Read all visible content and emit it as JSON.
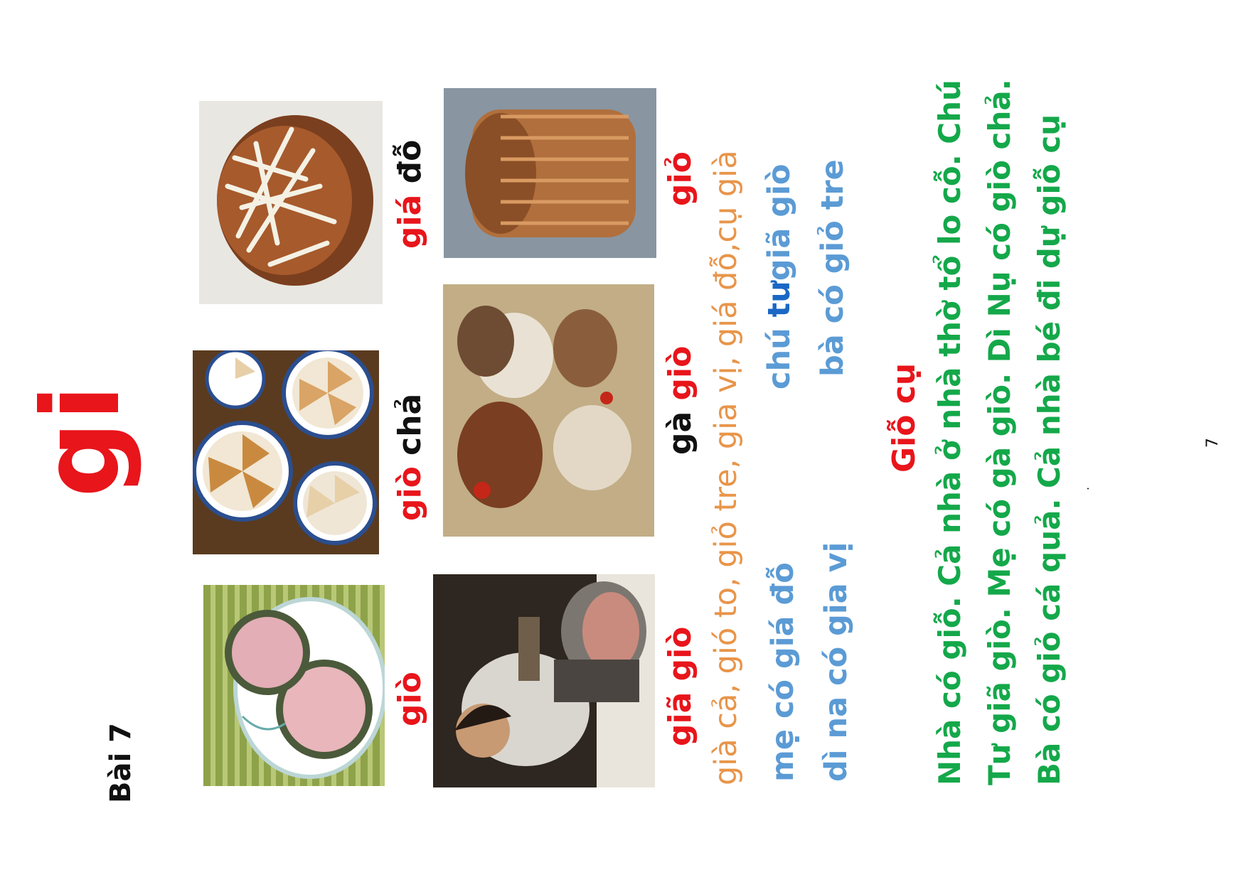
{
  "page": {
    "lesson": "Bài 7",
    "letter": "gi",
    "page_number": "7",
    "stray_dot": "."
  },
  "words": [
    {
      "parts": [
        "giò"
      ],
      "colors": [
        "red"
      ]
    },
    {
      "parts": [
        "giò",
        " chả"
      ],
      "colors": [
        "red",
        "black"
      ]
    },
    {
      "parts": [
        "giá",
        " đỗ"
      ],
      "colors": [
        "red",
        "black"
      ]
    },
    {
      "parts": [
        "giã",
        " giò"
      ],
      "colors": [
        "red",
        "red"
      ]
    },
    {
      "parts": [
        "gà ",
        "giò"
      ],
      "colors": [
        "black",
        "red"
      ]
    },
    {
      "parts": [
        "giỏ"
      ],
      "colors": [
        "red"
      ]
    }
  ],
  "vocab_line": "già cả, gió to, giỏ tre, gia vị, giá đỗ,cụ già",
  "phrases": {
    "p1": "mẹ có giá đỗ",
    "p2": "dì na có gia vị",
    "p3_a": "chú ",
    "p3_b": "tư",
    "p3_c": "giã giò",
    "p4": "bà có giỏ tre"
  },
  "story": {
    "title": "Giỗ cụ",
    "lines": [
      "Nhà có giỗ. Cả nhà ở nhà thờ tổ lo cỗ. Chú",
      "Tư giã giò.   Mẹ có gà giò. Dì Nụ có giò chả.",
      "Bà có giỏ cá quả. Cả nhà bé đi dự giỗ cụ"
    ]
  },
  "colors": {
    "red": "#e8151b",
    "black": "#111111",
    "blue": "#5b9bd5",
    "blue_dark": "#1a67c5",
    "orange": "#e8954a",
    "green": "#14a84a"
  },
  "images": [
    {
      "name": "gio-roll-image"
    },
    {
      "name": "gio-cha-image"
    },
    {
      "name": "gia-do-image"
    },
    {
      "name": "man-pounding-image"
    },
    {
      "name": "chickens-image"
    },
    {
      "name": "basket-image"
    }
  ]
}
